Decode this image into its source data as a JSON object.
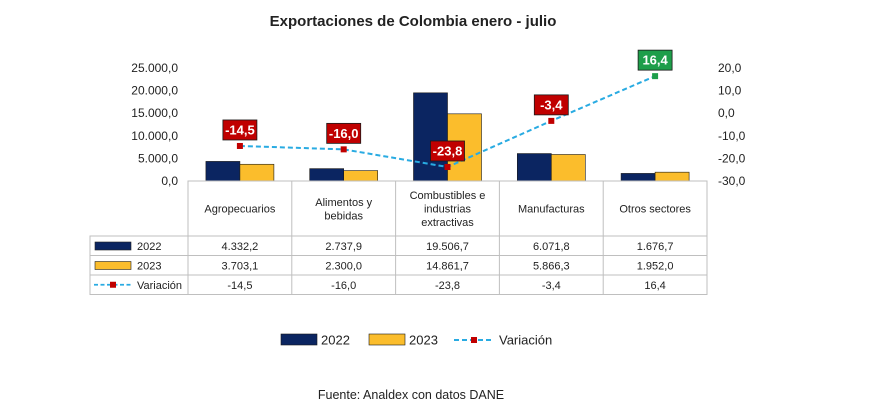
{
  "chart_data": {
    "type": "bar",
    "title": "Exportaciones de Colombia enero - julio",
    "categories": [
      [
        "Agropecuarios"
      ],
      [
        "Alimentos y",
        "bebidas"
      ],
      [
        "Combustibles e",
        "industrias",
        "extractivas"
      ],
      [
        "Manufacturas"
      ],
      [
        "Otros sectores"
      ]
    ],
    "series": [
      {
        "name": "2022",
        "type": "bar",
        "axis": "left",
        "color": "#0b2561",
        "values": [
          4332.2,
          2737.9,
          19506.7,
          6071.8,
          1676.7
        ],
        "labels": [
          "4.332,2",
          "2.737,9",
          "19.506,7",
          "6.071,8",
          "1.676,7"
        ]
      },
      {
        "name": "2023",
        "type": "bar",
        "axis": "left",
        "color": "#fbbd2c",
        "values": [
          3703.1,
          2300.0,
          14861.7,
          5866.3,
          1952.0
        ],
        "labels": [
          "3.703,1",
          "2.300,0",
          "14.861,7",
          "5.866,3",
          "1.952,0"
        ]
      },
      {
        "name": "Variación",
        "type": "line",
        "axis": "right",
        "color": "#29abe2",
        "marker_color": "#c00000",
        "style": "dashed",
        "values": [
          -14.5,
          -16.0,
          -23.8,
          -3.4,
          16.4
        ],
        "labels": [
          "-14,5",
          "-16,0",
          "-23,8",
          "-3,4",
          "16,4"
        ]
      }
    ],
    "data_labels": {
      "values": [
        "-14,5",
        "-16,0",
        "-23,8",
        "-3,4",
        "16,4"
      ],
      "colors": [
        "#c00000",
        "#c00000",
        "#c00000",
        "#c00000",
        "#1e9e4a"
      ]
    },
    "y_left": {
      "ylim": [
        0,
        25000
      ],
      "ticks": [
        "25.000,0",
        "20.000,0",
        "15.000,0",
        "10.000,0",
        "5.000,0",
        "0,0"
      ]
    },
    "y_right": {
      "ylim": [
        -30,
        20
      ],
      "ticks": [
        "20,0",
        "10,0",
        "0,0",
        "-10,0",
        "-20,0",
        "-30,0"
      ]
    },
    "legend": {
      "position": "bottom",
      "entries": [
        "2022",
        "2023",
        "Variación"
      ]
    },
    "data_table": true,
    "grid": false
  },
  "footer": {
    "source": "Fuente: Analdex con datos DANE"
  }
}
